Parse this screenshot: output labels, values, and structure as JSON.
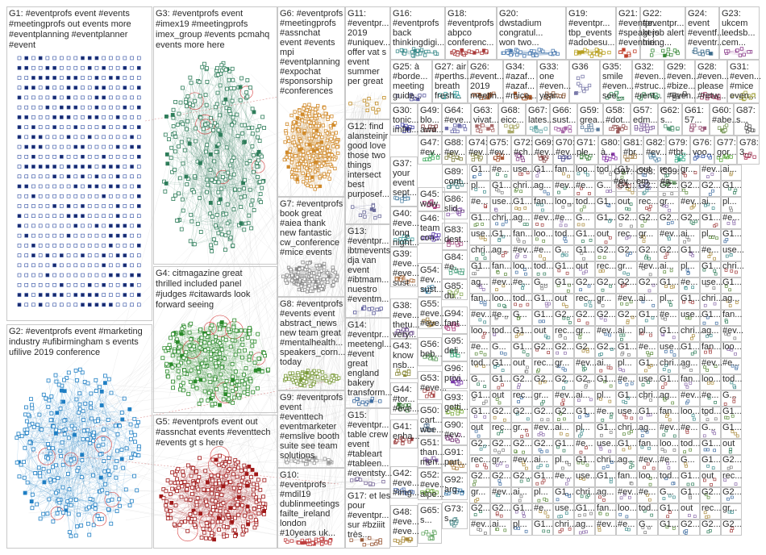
{
  "panels": [
    {
      "id": "G1",
      "lines": [
        "G1: #eventprofs event #events",
        "#meetingprofs out events more",
        "#eventplanning #eventplanner",
        "#event"
      ],
      "color": "#1a3a8a",
      "shape": "square"
    },
    {
      "id": "G2",
      "lines": [
        "G2: #eventprofs event #marketing",
        "industry #ufibirmingham s events",
        "ufilive 2019 conference"
      ],
      "color": "#1f7fc4",
      "shape": "square"
    },
    {
      "id": "G3",
      "lines": [
        "G3: #eventprofs event",
        "#imex19 #meetingprofs",
        "imex_group #events pcmahq",
        "events more here"
      ],
      "color": "#2e7d5a",
      "shape": "square"
    },
    {
      "id": "G4",
      "lines": [
        "G4: citmagazine great",
        "thrilled included panel",
        "#judges #citawards look",
        "forward seeing"
      ],
      "color": "#2a8a2a",
      "shape": "square"
    },
    {
      "id": "G5",
      "lines": [
        "G5: #eventprofs event out",
        "#assnchat events #eventtech",
        "#events gt s here"
      ],
      "color": "#a01818",
      "shape": "square"
    },
    {
      "id": "G6",
      "lines": [
        "G6: #eventprofs",
        "#meetingprofs",
        "#assnchat",
        "event #events",
        "mpi",
        "#eventplanning",
        "#expochat",
        "#sponsorship",
        "#conferences"
      ],
      "color": "#d18a2a",
      "shape": "square"
    },
    {
      "id": "G7",
      "lines": [
        "G7: #eventprofs",
        "book great",
        "#aiea thank",
        "new fantastic",
        "cw_conference",
        "#mice events"
      ],
      "color": "#8a8a8a",
      "shape": "square"
    },
    {
      "id": "G8",
      "lines": [
        "G8: #eventprofs",
        "#events event",
        "abstract_news",
        "new team great",
        "#mentalhealth...",
        "speakers_corn...",
        "today"
      ],
      "color": "#7a9a3a",
      "shape": "square"
    },
    {
      "id": "G9",
      "lines": [
        "G9: #eventprofs",
        "event",
        "#eventtech",
        "eventmarketer",
        "#emslive booth",
        "suite see team",
        "solutions"
      ],
      "color": "#9a9a9a",
      "shape": "square"
    },
    {
      "id": "G10",
      "lines": [
        "G10:",
        "#eventprofs",
        "#mdil19",
        "dublinmeetings",
        "failte_ireland",
        "london",
        "#10years uk..."
      ],
      "color": "#c04040",
      "shape": "square"
    },
    {
      "id": "G11",
      "lines": [
        "G11:",
        "#eventpr...",
        "2019",
        "#uniquev...",
        "offer vat s",
        "event",
        "summer",
        "per great"
      ],
      "color": "#c08a20",
      "shape": "square"
    },
    {
      "id": "G12",
      "lines": [
        "G12: find",
        "alansteinjr",
        "good love",
        "those two",
        "things",
        "intersect",
        "best",
        "purposef..."
      ],
      "color": "#6a6a9a",
      "shape": "square"
    },
    {
      "id": "G13",
      "lines": [
        "G13:",
        "#eventpr...",
        "ibtmevents",
        "dja van",
        "event",
        "#ibtmam...",
        "nuestro",
        "#eventm..."
      ],
      "color": "#5a5a9a",
      "shape": "square"
    },
    {
      "id": "G14",
      "lines": [
        "G14:",
        "#eventpr...",
        "meetengl...",
        "#event",
        "great",
        "england",
        "bakery",
        "transform..."
      ],
      "color": "#3a6aa0",
      "shape": "square"
    },
    {
      "id": "G15",
      "lines": [
        "G15:",
        "#eventpr...",
        "table crew",
        "event",
        "#tableart",
        "#tableen...",
        "#eventsty..."
      ],
      "color": "#7a6a9a",
      "shape": "square"
    },
    {
      "id": "G16",
      "lines": [
        "G16:",
        "#eventprofs",
        "back",
        "thinkingdigi..."
      ],
      "color": "#3a8a8a",
      "shape": "square"
    },
    {
      "id": "G17",
      "lines": [
        "G17: et les",
        "pour",
        "#eventpr...",
        "sur #bziiit",
        "très..."
      ],
      "color": "#9a5a3a",
      "shape": "square"
    },
    {
      "id": "G18",
      "lines": [
        "G18:",
        "#eventprofs",
        "abpco",
        "conferenc..."
      ],
      "color": "#aa3a3a",
      "shape": "square"
    },
    {
      "id": "G19",
      "lines": [
        "G19:",
        "#eventpr...",
        "tbp_events",
        "#adobesu..."
      ],
      "color": "#b8a020",
      "shape": "square"
    },
    {
      "id": "G20",
      "lines": [
        "G20:",
        "dwstadium",
        "congratul...",
        "won two..."
      ],
      "color": "#4a7ab0",
      "shape": "square"
    },
    {
      "id": "G21",
      "lines": [
        "G21:",
        "#eventpr...",
        "#speakers",
        "#eventne..."
      ],
      "color": "#c0402a",
      "shape": "square"
    },
    {
      "id": "G22",
      "lines": [
        "G22:",
        "#eventpr...",
        "gt job alert",
        "hiring..."
      ],
      "color": "#3a8a3a",
      "shape": "square"
    },
    {
      "id": "G23",
      "lines": [
        "G23:",
        "ukcem",
        "leedsb...",
        "cem..."
      ],
      "color": "#8a3a8a",
      "shape": "square"
    },
    {
      "id": "G24",
      "lines": [
        "G24:",
        "event",
        "#eventf...",
        "#eventr..."
      ],
      "color": "#3a6a8a",
      "shape": "square"
    },
    {
      "id": "G25",
      "lines": [
        "G25: à",
        "#borde...",
        "meeting",
        "guide..."
      ],
      "color": "#5a5aa0",
      "shape": "square"
    },
    {
      "id": "G26",
      "lines": [
        "G26:",
        "#event...",
        "2019",
        "meetin..."
      ],
      "color": "#a0603a",
      "shape": "square"
    },
    {
      "id": "G27",
      "lines": [
        "G27: air",
        "#perths...",
        "breath",
        "fresh..."
      ],
      "color": "#3aa0a0",
      "shape": "square"
    },
    {
      "id": "G28",
      "lines": [
        "G28:",
        "#even...",
        "please",
        "#retw..."
      ],
      "color": "#a03a60",
      "shape": "square"
    },
    {
      "id": "G29",
      "lines": [
        "G29:",
        "#even...",
        "#bize...",
        "#even..."
      ],
      "color": "#606060",
      "shape": "square"
    },
    {
      "id": "G30",
      "lines": [
        "G30:",
        "tonic...",
        "imfin...",
        "#eve..."
      ],
      "color": "#3a3aa0",
      "shape": "square"
    },
    {
      "id": "G31",
      "lines": [
        "G31:",
        "#even...",
        "#mice",
        "even..."
      ],
      "color": "#a0a03a",
      "shape": "square"
    },
    {
      "id": "G32",
      "lines": [
        "G32:",
        "#even...",
        "#struc...",
        "#rent..."
      ],
      "color": "#3a8a5a",
      "shape": "square"
    },
    {
      "id": "G33",
      "lines": [
        "G33:",
        "one",
        "#even...",
        "year..."
      ],
      "color": "#8a5a3a",
      "shape": "square"
    },
    {
      "id": "G34",
      "lines": [
        "G34:",
        "#azaf...",
        "#azaf...",
        "#mice..."
      ],
      "color": "#aa5a2a",
      "shape": "square"
    },
    {
      "id": "G35",
      "lines": [
        "G35:",
        "smile",
        "#even...",
        "see..."
      ],
      "color": "#4a9a6a",
      "shape": "square"
    },
    {
      "id": "G36",
      "lines": [
        "G36"
      ],
      "color": "#7a7aaa",
      "shape": "square"
    },
    {
      "id": "G37",
      "lines": [
        "G37:",
        "your",
        "event",
        "sept..."
      ],
      "color": "#5a8aaa",
      "shape": "square"
    },
    {
      "id": "G38",
      "lines": [
        "G38:",
        "#eve...",
        "thetu...",
        "very..."
      ],
      "color": "#6a4a8a",
      "shape": "square"
    },
    {
      "id": "G39",
      "lines": [
        "G39:",
        "#eve...",
        "#eve...",
        "sust..."
      ],
      "color": "#aa6a3a",
      "shape": "square"
    },
    {
      "id": "G40",
      "lines": [
        "G40:",
        "#eve...",
        "long",
        "night..."
      ],
      "color": "#3a9a9a",
      "shape": "square"
    },
    {
      "id": "G41",
      "lines": [
        "G41:",
        "enha...",
        "#eve..."
      ],
      "color": "#9a3a3a",
      "shape": "square"
    },
    {
      "id": "G42",
      "lines": [
        "G42:",
        "#eve...",
        "#img..."
      ],
      "color": "#4a6aaa",
      "shape": "square"
    },
    {
      "id": "G43",
      "lines": [
        "G43:",
        "know",
        "nsb..."
      ],
      "color": "#8a8a3a",
      "shape": "square"
    },
    {
      "id": "G44",
      "lines": [
        "G44:",
        "#tor...",
        "#eve..."
      ],
      "color": "#3a7a3a",
      "shape": "square"
    },
    {
      "id": "G45",
      "lines": [
        "G45:",
        "wow",
        "jess..."
      ],
      "color": "#aa3a7a",
      "shape": "square"
    },
    {
      "id": "G46",
      "lines": [
        "G46:",
        "team",
        "con..."
      ],
      "color": "#5a3aaa",
      "shape": "square"
    },
    {
      "id": "G47",
      "lines": [
        "G47:",
        "#ev...",
        "#roy..."
      ],
      "color": "#3aaa5a",
      "shape": "square"
    },
    {
      "id": "G48",
      "lines": [
        "G48:",
        "#eve...",
        "#eve..."
      ],
      "color": "#aa8a3a",
      "shape": "square"
    },
    {
      "id": "G49",
      "lines": [
        "G49:",
        "blo...",
        "awa..."
      ],
      "color": "#7a3a3a",
      "shape": "square"
    },
    {
      "id": "G50",
      "lines": [
        "G50:",
        "cart...",
        "wee..."
      ],
      "color": "#3a5a7a",
      "shape": "square"
    },
    {
      "id": "G51",
      "lines": [
        "G51:",
        "than...",
        "men..."
      ],
      "color": "#8a6aaa",
      "shape": "square"
    },
    {
      "id": "G52",
      "lines": [
        "G52:",
        "#eve...",
        "alpe..."
      ],
      "color": "#6aaa3a",
      "shape": "square"
    },
    {
      "id": "G53",
      "lines": [
        "G53:",
        "#eve...",
        "event"
      ],
      "color": "#aa4a4a",
      "shape": "square"
    },
    {
      "id": "G54",
      "lines": [
        "G54:",
        "#ev...",
        "sust..."
      ],
      "color": "#4a8aaa",
      "shape": "square"
    },
    {
      "id": "G55",
      "lines": [
        "G55:",
        "#eve...",
        "#eve..."
      ],
      "color": "#9a7a3a",
      "shape": "square"
    },
    {
      "id": "G56",
      "lines": [
        "G56:",
        "beb...",
        "#eve..."
      ],
      "color": "#5a9a5a",
      "shape": "square"
    },
    {
      "id": "G57",
      "lines": [
        "G57:",
        "edm..."
      ],
      "color": "#7a5a9a",
      "shape": "square"
    },
    {
      "id": "G58",
      "lines": [
        "G58:",
        "#dot..."
      ],
      "color": "#9a5a5a",
      "shape": "square"
    },
    {
      "id": "G59",
      "lines": [
        "G59:",
        "grea..."
      ],
      "color": "#5a7a9a",
      "shape": "square"
    },
    {
      "id": "G60",
      "lines": [
        "G60:",
        "#abe..."
      ],
      "color": "#7a9a5a",
      "shape": "square"
    },
    {
      "id": "G61",
      "lines": [
        "G61:",
        "57..."
      ],
      "color": "#9a5a7a",
      "shape": "square"
    },
    {
      "id": "G62",
      "lines": [
        "G62:",
        "s..."
      ],
      "color": "#5a9a7a",
      "shape": "square"
    },
    {
      "id": "G63",
      "lines": [
        "G63:",
        "vivat..."
      ],
      "color": "#aa6a6a",
      "shape": "square"
    },
    {
      "id": "G64",
      "lines": [
        "G64:",
        "#eve..."
      ],
      "color": "#6a6aaa",
      "shape": "square"
    },
    {
      "id": "G65",
      "lines": [
        "G65:",
        "s..."
      ],
      "color": "#6aaa6a",
      "shape": "square"
    },
    {
      "id": "G66",
      "lines": [
        "G66:",
        "sust..."
      ],
      "color": "#aa6aaa",
      "shape": "square"
    },
    {
      "id": "G67",
      "lines": [
        "G67:",
        "lates..."
      ],
      "color": "#6aaaaa",
      "shape": "square"
    },
    {
      "id": "G68",
      "lines": [
        "G68:",
        "eicc..."
      ],
      "color": "#aaaa6a",
      "shape": "square"
    },
    {
      "id": "G69",
      "lines": [
        "G69:",
        "#ev..."
      ],
      "color": "#8a4a4a",
      "shape": "square"
    },
    {
      "id": "G70",
      "lines": [
        "G70:",
        "#ev..."
      ],
      "color": "#4a4a8a",
      "shape": "square"
    },
    {
      "id": "G71",
      "lines": [
        "G71:",
        "ple..."
      ],
      "color": "#4a8a4a",
      "shape": "square"
    },
    {
      "id": "G72",
      "lines": [
        "G72:",
        "#ch..."
      ],
      "color": "#8a4a8a",
      "shape": "square"
    },
    {
      "id": "G73",
      "lines": [
        "G73:",
        "s..."
      ],
      "color": "#4a8a8a",
      "shape": "square"
    },
    {
      "id": "G74",
      "lines": [
        "G74:",
        "#ev..."
      ],
      "color": "#8a8a4a",
      "shape": "square"
    },
    {
      "id": "G75",
      "lines": [
        "G75:",
        "#ev..."
      ],
      "color": "#aa5a3a",
      "shape": "square"
    },
    {
      "id": "G76",
      "lines": [
        "G76:",
        "voo..."
      ],
      "color": "#3a5aaa",
      "shape": "square"
    },
    {
      "id": "G77",
      "lines": [
        "G77:",
        "gor..."
      ],
      "color": "#5aaa3a",
      "shape": "square"
    },
    {
      "id": "G78",
      "lines": [
        "G78:",
        "3..."
      ],
      "color": "#aa3a5a",
      "shape": "square"
    },
    {
      "id": "G79",
      "lines": [
        "G79:",
        "#tbt..."
      ],
      "color": "#3aaa8a",
      "shape": "square"
    },
    {
      "id": "G80",
      "lines": [
        "G80:",
        "à..."
      ],
      "color": "#8a3aaa",
      "shape": "square"
    },
    {
      "id": "G81",
      "lines": [
        "G81:",
        "#br..."
      ],
      "color": "#aa8a5a",
      "shape": "square"
    },
    {
      "id": "G82",
      "lines": [
        "G82:",
        "#ev..."
      ],
      "color": "#5a8aaa",
      "shape": "square"
    },
    {
      "id": "G83",
      "lines": [
        "G83:",
        "dest..."
      ],
      "color": "#aa5a8a",
      "shape": "square"
    },
    {
      "id": "G84",
      "lines": [
        "G84:",
        "#e..."
      ],
      "color": "#5aaa8a",
      "shape": "square"
    },
    {
      "id": "G85",
      "lines": [
        "G85:",
        "du..."
      ],
      "color": "#8aaa5a",
      "shape": "square"
    },
    {
      "id": "G86",
      "lines": [
        "G86:",
        "slid..."
      ],
      "color": "#8a5aaa",
      "shape": "square"
    },
    {
      "id": "G87",
      "lines": [
        "G87:",
        "s..."
      ],
      "color": "#5a5a5a",
      "shape": "square"
    },
    {
      "id": "G88",
      "lines": [
        "G88:",
        "#ev..."
      ],
      "color": "#7a7a3a",
      "shape": "square"
    },
    {
      "id": "G89",
      "lines": [
        "G89:",
        "cont..."
      ],
      "color": "#3a7a7a",
      "shape": "square"
    },
    {
      "id": "G90",
      "lines": [
        "G90:",
        "#ev..."
      ],
      "color": "#7a3a7a",
      "shape": "square"
    },
    {
      "id": "G91",
      "lines": [
        "G91:",
        "part..."
      ],
      "color": "#aa7a3a",
      "shape": "square"
    },
    {
      "id": "G92",
      "lines": [
        "G92:",
        "arg..."
      ],
      "color": "#3a7aaa",
      "shape": "square"
    },
    {
      "id": "G93",
      "lines": [
        "G93:",
        "getti..."
      ],
      "color": "#7aaa3a",
      "shape": "square"
    },
    {
      "id": "G94",
      "lines": [
        "G94:",
        "fant..."
      ],
      "color": "#aa3a7a",
      "shape": "square"
    },
    {
      "id": "G95",
      "lines": [
        "G95:",
        "deli..."
      ],
      "color": "#3aaa7a",
      "shape": "square"
    },
    {
      "id": "G96",
      "lines": [
        "G96:",
        "privi..."
      ],
      "color": "#7a3aaa",
      "shape": "square"
    },
    {
      "id": "G97",
      "lines": [
        "G97:",
        "#ev..."
      ],
      "color": "#aa7a7a",
      "shape": "square"
    },
    {
      "id": "G98",
      "lines": [
        "G98:",
        "em..."
      ],
      "color": "#7a7aaa",
      "shape": "square"
    },
    {
      "id": "G99",
      "lines": [
        "G99:",
        "#a..."
      ],
      "color": "#7aaa7a",
      "shape": "square"
    }
  ],
  "small_labels": [
    "G1...",
    "#e...",
    "use...",
    "G1...",
    "fan...",
    "loo...",
    "tod...",
    "G1...",
    "out",
    "rec...",
    "gr...",
    "#ev...",
    "ai...",
    "pl...",
    "G1...",
    "chri...",
    "ag...",
    "#ev...",
    "#e...",
    "G...",
    "G1...",
    "G2...",
    "G2...",
    "G2...",
    "G2..."
  ]
}
